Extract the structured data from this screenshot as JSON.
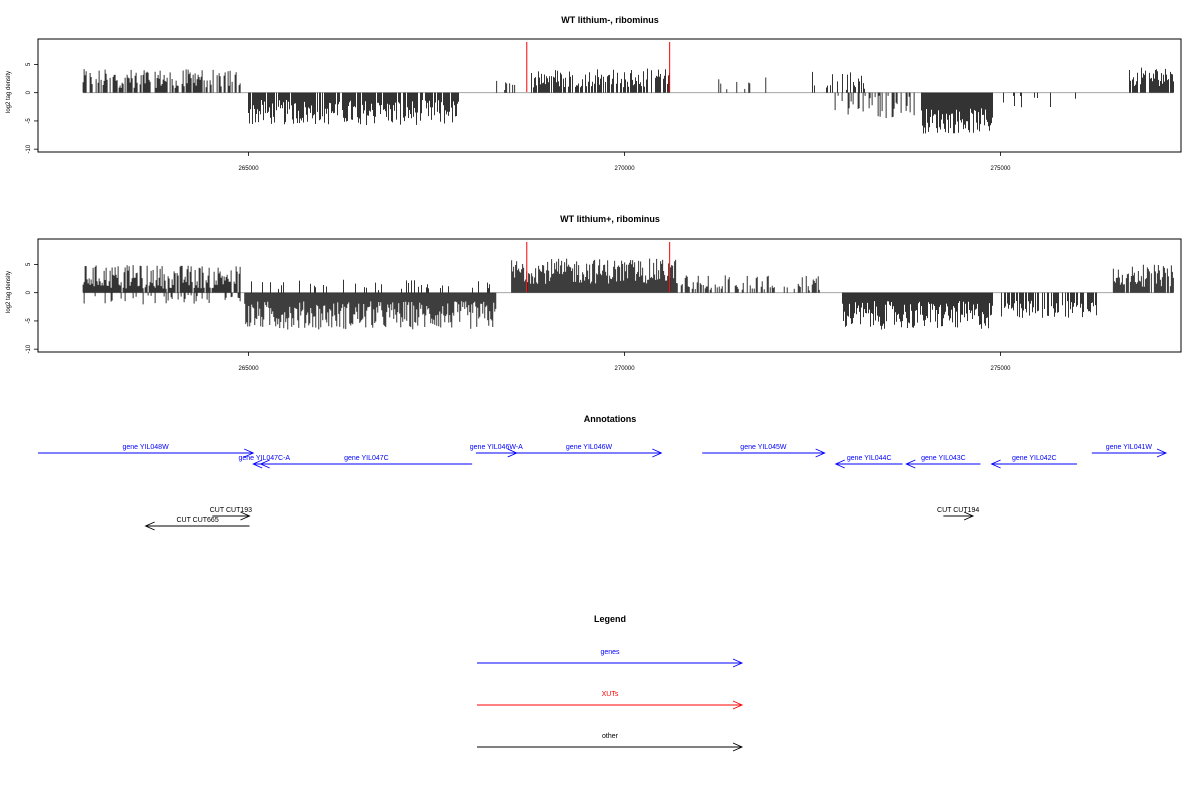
{
  "colors": {
    "genes": "#0000ff",
    "xuts": "#ff0000",
    "other": "#000000",
    "frame": "#000000",
    "marker": "#ff0000"
  },
  "chart_data": [
    {
      "type": "bar",
      "title": "WT lithium-, ribominus",
      "ylabel": "log2 tag density",
      "xlim": [
        262200,
        277400
      ],
      "ylim": [
        -10.5,
        9.5
      ],
      "xticks": [
        {
          "value": 265000,
          "label": "265000"
        },
        {
          "value": 270000,
          "label": "270000"
        },
        {
          "value": 275000,
          "label": "275000"
        }
      ],
      "yticks": [
        {
          "value": 5,
          "label": "5"
        },
        {
          "value": 0,
          "label": "0"
        },
        {
          "value": -5,
          "label": "-5"
        },
        {
          "value": -10,
          "label": "-10"
        }
      ],
      "markers": [
        268700,
        270600
      ],
      "segments": [
        {
          "x0": 262800,
          "x1": 264900,
          "mean": 2.5,
          "amp": 1.2,
          "density": 0.7
        },
        {
          "x0": 265000,
          "x1": 267800,
          "mean": -3.5,
          "amp": 1.6,
          "density": 0.85
        },
        {
          "x0": 268300,
          "x1": 268650,
          "mean": 1.0,
          "amp": 1.0,
          "density": 0.3
        },
        {
          "x0": 268750,
          "x1": 270600,
          "mean": 2.6,
          "amp": 1.2,
          "density": 0.7
        },
        {
          "x0": 271200,
          "x1": 271900,
          "mean": 1.5,
          "amp": 1.0,
          "density": 0.15
        },
        {
          "x0": 272500,
          "x1": 273200,
          "mean": 1.8,
          "amp": 1.5,
          "density": 0.3
        },
        {
          "x0": 272800,
          "x1": 273900,
          "mean": -2.5,
          "amp": 1.5,
          "density": 0.4
        },
        {
          "x0": 273950,
          "x1": 274900,
          "mean": -5.0,
          "amp": 1.6,
          "density": 1.0
        },
        {
          "x0": 275000,
          "x1": 276000,
          "mean": -1.5,
          "amp": 1.0,
          "density": 0.15
        },
        {
          "x0": 276700,
          "x1": 277300,
          "mean": 2.8,
          "amp": 1.2,
          "density": 0.8
        }
      ]
    },
    {
      "type": "bar",
      "title": "WT lithium+, ribominus",
      "ylabel": "log2 tag density",
      "xlim": [
        262200,
        277400
      ],
      "ylim": [
        -10.5,
        9.5
      ],
      "xticks": [
        {
          "value": 265000,
          "label": "265000"
        },
        {
          "value": 270000,
          "label": "270000"
        },
        {
          "value": 275000,
          "label": "275000"
        }
      ],
      "yticks": [
        {
          "value": 5,
          "label": "5"
        },
        {
          "value": 0,
          "label": "0"
        },
        {
          "value": -5,
          "label": "-5"
        },
        {
          "value": -10,
          "label": "-10"
        }
      ],
      "markers": [
        268700,
        270600
      ],
      "segments": [
        {
          "x0": 262800,
          "x1": 264900,
          "mean": 2.8,
          "amp": 1.5,
          "density": 0.9
        },
        {
          "x0": 262800,
          "x1": 264900,
          "mean": -1.0,
          "amp": 0.8,
          "density": 0.25
        },
        {
          "x0": 264950,
          "x1": 268300,
          "mean": -4.0,
          "amp": 1.8,
          "density": 1.0
        },
        {
          "x0": 265000,
          "x1": 268300,
          "mean": 1.0,
          "amp": 1.0,
          "density": 0.15
        },
        {
          "x0": 268500,
          "x1": 270700,
          "mean": 3.8,
          "amp": 1.6,
          "density": 1.0
        },
        {
          "x0": 270700,
          "x1": 272600,
          "mean": 1.5,
          "amp": 1.2,
          "density": 0.45
        },
        {
          "x0": 272900,
          "x1": 274900,
          "mean": -4.0,
          "amp": 1.8,
          "density": 1.0
        },
        {
          "x0": 275000,
          "x1": 276300,
          "mean": -3.0,
          "amp": 1.2,
          "density": 0.6
        },
        {
          "x0": 276500,
          "x1": 277300,
          "mean": 3.0,
          "amp": 1.4,
          "density": 0.9
        }
      ]
    }
  ],
  "annotations": {
    "title": "Annotations",
    "xlim": [
      262200,
      277400
    ],
    "items": [
      {
        "label": "gene YIL048W",
        "start": 262200,
        "end": 265100,
        "dir": "+",
        "row": 0,
        "kind": "gene"
      },
      {
        "label": "gene YIL047C-A",
        "start": 265100,
        "end": 265400,
        "dir": "-",
        "row": 1,
        "kind": "gene"
      },
      {
        "label": "gene YIL047C",
        "start": 265200,
        "end": 268050,
        "dir": "-",
        "row": 1,
        "kind": "gene"
      },
      {
        "label": "gene YIL046W-A",
        "start": 268100,
        "end": 268650,
        "dir": "+",
        "row": 0,
        "kind": "gene"
      },
      {
        "label": "gene YIL046W",
        "start": 268650,
        "end": 270600,
        "dir": "+",
        "row": 0,
        "kind": "gene"
      },
      {
        "label": "gene YIL045W",
        "start": 271150,
        "end": 272800,
        "dir": "+",
        "row": 0,
        "kind": "gene"
      },
      {
        "label": "gene YIL044C",
        "start": 272950,
        "end": 273850,
        "dir": "-",
        "row": 1,
        "kind": "gene"
      },
      {
        "label": "gene YIL043C",
        "start": 273900,
        "end": 274900,
        "dir": "-",
        "row": 1,
        "kind": "gene"
      },
      {
        "label": "gene YIL042C",
        "start": 275050,
        "end": 276200,
        "dir": "-",
        "row": 1,
        "kind": "gene"
      },
      {
        "label": "gene YIL041W",
        "start": 276400,
        "end": 277400,
        "dir": "+",
        "row": 0,
        "kind": "gene"
      },
      {
        "label": "CUT CUT193",
        "start": 264550,
        "end": 265050,
        "dir": "+",
        "row": 2,
        "kind": "other"
      },
      {
        "label": "CUT CUT665",
        "start": 263650,
        "end": 265050,
        "dir": "-",
        "row": 3,
        "kind": "other"
      },
      {
        "label": "CUT CUT194",
        "start": 274400,
        "end": 274800,
        "dir": "+",
        "row": 2,
        "kind": "other"
      }
    ]
  },
  "legend": {
    "title": "Legend",
    "items": [
      {
        "label": "genes",
        "kind": "gene"
      },
      {
        "label": "XUTs",
        "kind": "xuts"
      },
      {
        "label": "other",
        "kind": "other"
      }
    ]
  }
}
